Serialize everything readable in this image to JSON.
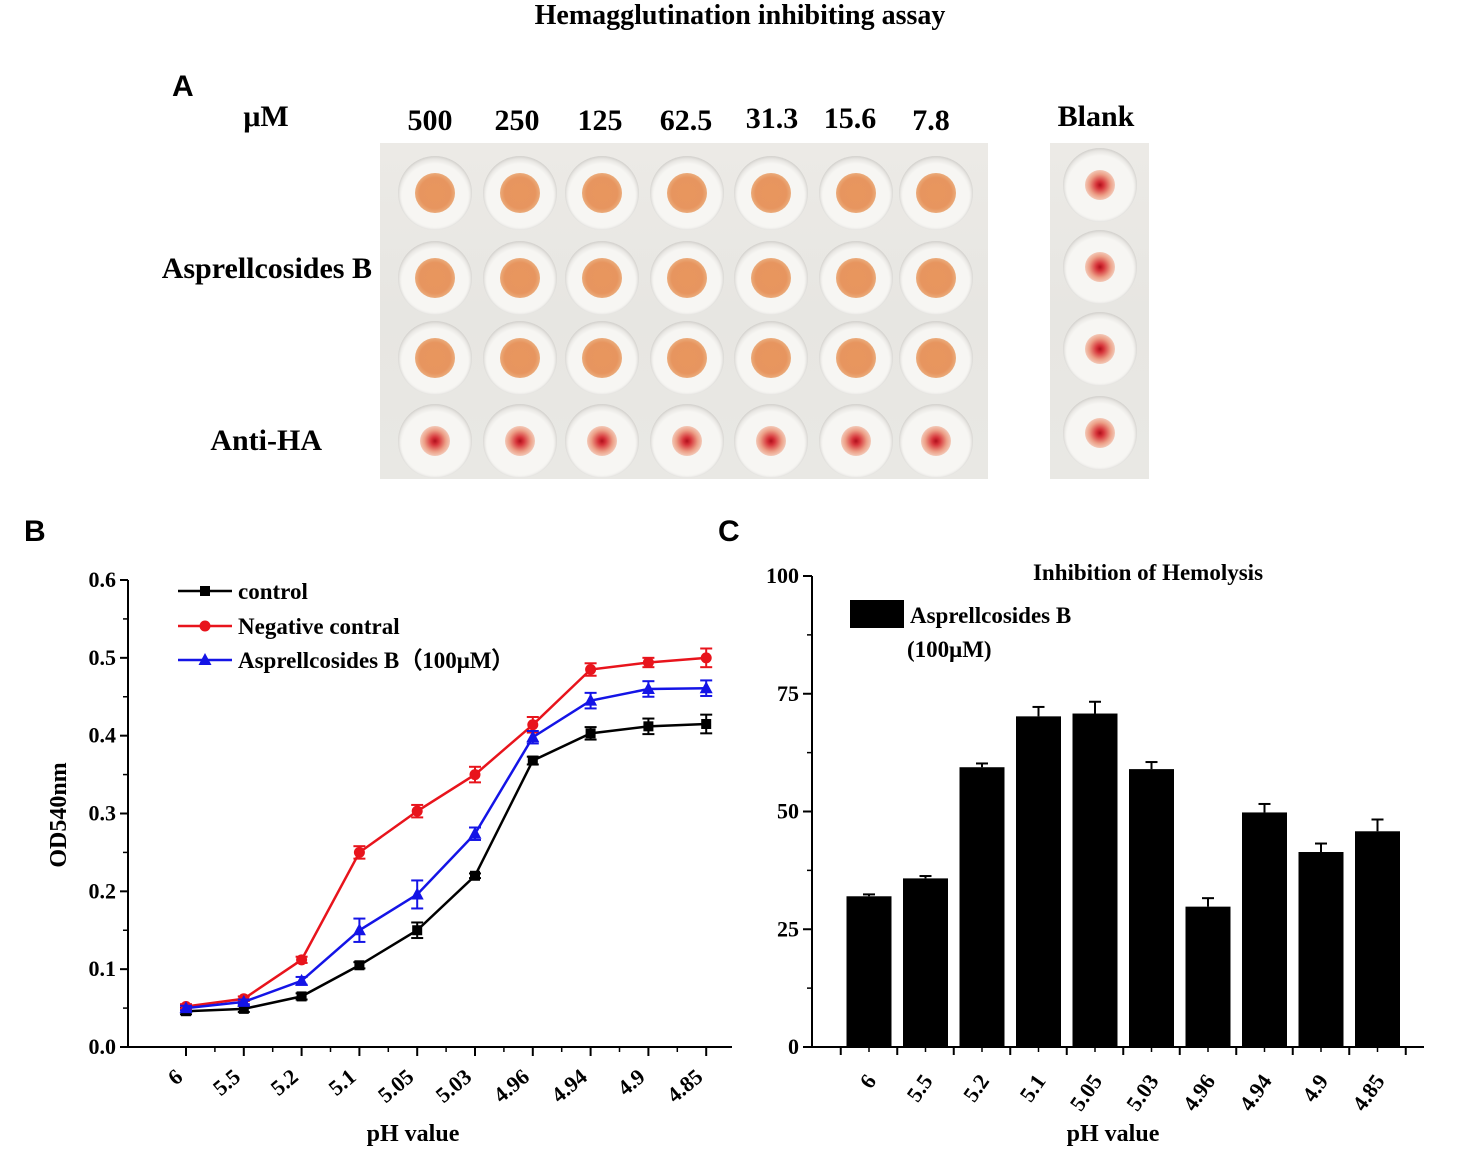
{
  "figure_title": "Hemagglutination inhibiting assay",
  "panel_a": {
    "letter": "A",
    "unit_label": "μM",
    "concentrations": [
      "500",
      "250",
      "125",
      "62.5",
      "31.3",
      "15.6",
      "7.8"
    ],
    "blank_label": "Blank",
    "row_labels": [
      "Asprellcosides B",
      "Anti-HA"
    ],
    "wells": {
      "sample_rows": 3,
      "sample_result": "no hemagglutination pellet (diffuse orange)",
      "anti_ha_result": "red button pellet",
      "blank_result": "red button pellet"
    },
    "colors": {
      "diffuse": "#e8965e",
      "button": "#c41a24"
    }
  },
  "chart_data": [
    {
      "panel": "B",
      "type": "line",
      "title": "",
      "xlabel": "pH value",
      "ylabel": "OD540nm",
      "categories": [
        "6",
        "5.5",
        "5.2",
        "5.1",
        "5.05",
        "5.03",
        "4.96",
        "4.94",
        "4.9",
        "4.85"
      ],
      "ylim": [
        0.0,
        0.6
      ],
      "yticks": [
        "0.0",
        "0.1",
        "0.2",
        "0.3",
        "0.4",
        "0.5",
        "0.6"
      ],
      "legend_position": "top-left",
      "series": [
        {
          "name": "control",
          "color": "#000000",
          "marker": "square",
          "values": [
            0.046,
            0.049,
            0.065,
            0.105,
            0.15,
            0.22,
            0.368,
            0.403,
            0.412,
            0.415
          ],
          "errors": [
            0.004,
            0.004,
            0.004,
            0.004,
            0.01,
            0.003,
            0.005,
            0.008,
            0.01,
            0.012
          ]
        },
        {
          "name": "Negative contral",
          "color": "#e8141c",
          "marker": "circle",
          "values": [
            0.052,
            0.062,
            0.112,
            0.25,
            0.303,
            0.35,
            0.414,
            0.485,
            0.494,
            0.5
          ],
          "errors": [
            0.003,
            0.003,
            0.004,
            0.008,
            0.008,
            0.01,
            0.01,
            0.008,
            0.006,
            0.012
          ]
        },
        {
          "name": "Asprellcosides B（100μM）",
          "color": "#1414e6",
          "marker": "triangle",
          "values": [
            0.05,
            0.058,
            0.085,
            0.15,
            0.196,
            0.274,
            0.398,
            0.445,
            0.46,
            0.461
          ],
          "errors": [
            0.003,
            0.003,
            0.005,
            0.015,
            0.018,
            0.008,
            0.008,
            0.01,
            0.01,
            0.01
          ]
        }
      ]
    },
    {
      "panel": "C",
      "type": "bar",
      "title": "Inhibition of Hemolysis",
      "xlabel": "pH value",
      "ylabel": "",
      "categories": [
        "6",
        "5.5",
        "5.2",
        "5.1",
        "5.05",
        "5.03",
        "4.96",
        "4.94",
        "4.9",
        "4.85"
      ],
      "ylim": [
        0,
        100
      ],
      "yticks": [
        "0",
        "25",
        "50",
        "75",
        "100"
      ],
      "legend_position": "top-left",
      "series": [
        {
          "name": "Asprellcosides B",
          "name_line2": "(100μM)",
          "color": "#000000",
          "values": [
            32,
            35.8,
            59.4,
            70.2,
            70.8,
            59,
            29.8,
            49.8,
            41.4,
            45.8
          ],
          "errors": [
            0.4,
            0.5,
            0.8,
            2.0,
            2.5,
            1.5,
            1.8,
            1.8,
            1.8,
            2.5
          ]
        }
      ]
    }
  ]
}
